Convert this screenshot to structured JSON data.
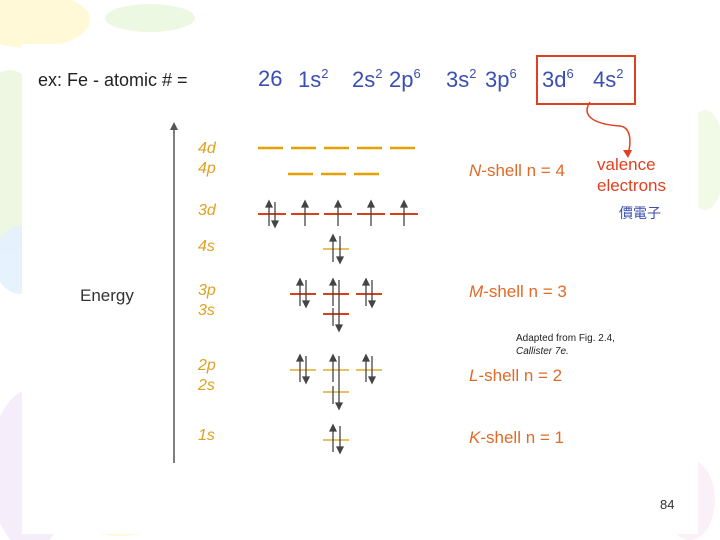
{
  "header": {
    "prefix": "ex:  Fe - atomic #  =",
    "atomic_number": "26",
    "config": [
      {
        "orbital": "1s",
        "count": "2"
      },
      {
        "orbital": "2s",
        "count": "2"
      },
      {
        "orbital": "2p",
        "count": "6"
      },
      {
        "orbital": "3s",
        "count": "2"
      },
      {
        "orbital": "3p",
        "count": "6"
      },
      {
        "orbital": "3d",
        "count": "6"
      },
      {
        "orbital": "4s",
        "count": "2"
      }
    ]
  },
  "diagram": {
    "energy_label": "Energy",
    "levels": {
      "d4": "4d",
      "p4": "4p",
      "d3": "3d",
      "s4": "4s",
      "p3": "3p",
      "s3": "3s",
      "p2": "2p",
      "s2": "2s",
      "s1": "1s"
    },
    "shells": {
      "n": {
        "letter": "N",
        "text": "-shell  n = 4"
      },
      "m": {
        "letter": "M",
        "text": "-shell  n = 3"
      },
      "l": {
        "letter": "L",
        "text": "-shell  n = 2"
      },
      "k": {
        "letter": "K",
        "text": "-shell  n = 1"
      }
    },
    "valence_line1": "valence",
    "valence_line2": "electrons",
    "valence_chinese": "價電子",
    "credit_line1": "Adapted from Fig. 2.4,",
    "credit_line2": "Callister 7e."
  },
  "colors": {
    "accent_orange": "#e06a28",
    "highlight_box": "#e04020",
    "heading_blue": "#3a4fb0"
  },
  "page_number": "84"
}
